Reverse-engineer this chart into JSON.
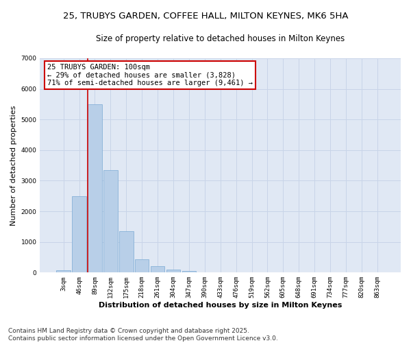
{
  "title_line1": "25, TRUBYS GARDEN, COFFEE HALL, MILTON KEYNES, MK6 5HA",
  "title_line2": "Size of property relative to detached houses in Milton Keynes",
  "xlabel": "Distribution of detached houses by size in Milton Keynes",
  "ylabel": "Number of detached properties",
  "categories": [
    "3sqm",
    "46sqm",
    "89sqm",
    "132sqm",
    "175sqm",
    "218sqm",
    "261sqm",
    "304sqm",
    "347sqm",
    "390sqm",
    "433sqm",
    "476sqm",
    "519sqm",
    "562sqm",
    "605sqm",
    "648sqm",
    "691sqm",
    "734sqm",
    "777sqm",
    "820sqm",
    "863sqm"
  ],
  "values": [
    80,
    2500,
    5500,
    3350,
    1350,
    430,
    200,
    100,
    50,
    10,
    0,
    0,
    0,
    0,
    0,
    0,
    0,
    0,
    0,
    0,
    0
  ],
  "bar_color": "#b8cfe8",
  "bar_edge_color": "#7aaad4",
  "vline_color": "#cc0000",
  "annotation_text": "25 TRUBYS GARDEN: 100sqm\n← 29% of detached houses are smaller (3,828)\n71% of semi-detached houses are larger (9,461) →",
  "annotation_box_color": "#ffffff",
  "annotation_box_edge": "#cc0000",
  "ylim": [
    0,
    7000
  ],
  "yticks": [
    0,
    1000,
    2000,
    3000,
    4000,
    5000,
    6000,
    7000
  ],
  "grid_color": "#c8d4e8",
  "bg_color": "#e0e8f4",
  "footer": "Contains HM Land Registry data © Crown copyright and database right 2025.\nContains public sector information licensed under the Open Government Licence v3.0.",
  "title_fontsize": 9.5,
  "subtitle_fontsize": 8.5,
  "axis_label_fontsize": 8,
  "tick_fontsize": 6.5,
  "footer_fontsize": 6.5,
  "annotation_fontsize": 7.5
}
